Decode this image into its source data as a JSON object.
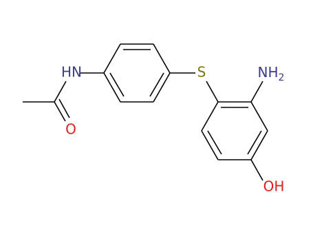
{
  "atoms": {
    "amide_n": "HN",
    "carbonyl_o": "O",
    "sulfur": "S",
    "amine": {
      "main": "NH",
      "subscript": "2"
    },
    "hydroxyl": "OH"
  }
}
